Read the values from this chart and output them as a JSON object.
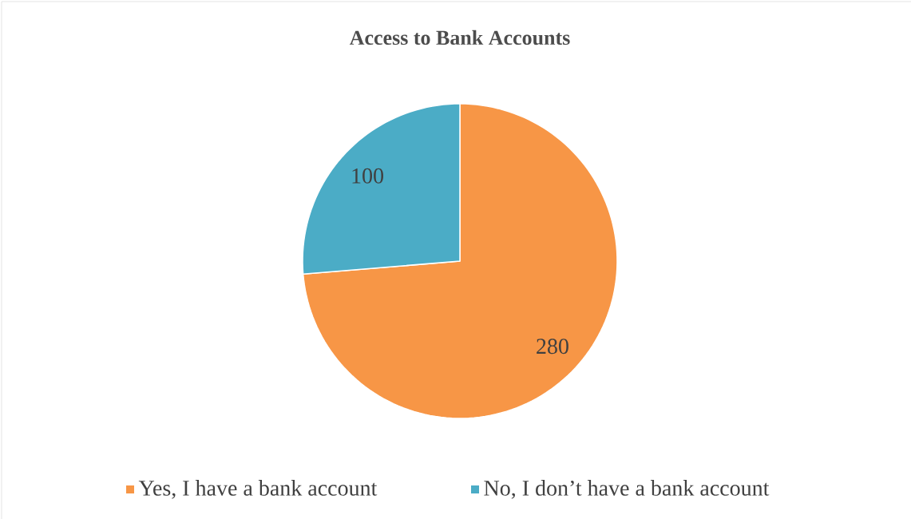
{
  "chart_data": {
    "type": "pie",
    "title": "Access to Bank Accounts",
    "categories": [
      "Yes, I have a bank account",
      "No, I don’t have a bank account"
    ],
    "values": [
      280,
      100
    ],
    "colors": [
      "#f79646",
      "#4bacc6"
    ],
    "data_labels": true,
    "legend": "bottom"
  }
}
